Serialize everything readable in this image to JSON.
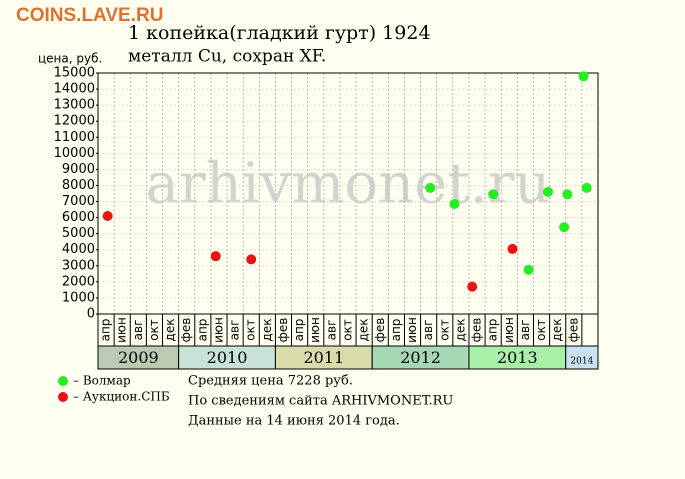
{
  "chart_data": {
    "type": "scatter",
    "watermark_top": "COINS.LAVE.RU",
    "title": "1 копейка(гладкий гурт) 1924",
    "subtitle": "металл Cu, сохран XF.",
    "ylabel": "цена, руб.",
    "watermark": "arhivmonet.ru",
    "xlim": [
      -0.5,
      30.5
    ],
    "ylim": [
      0,
      15000
    ],
    "yticks": [
      0,
      1000,
      2000,
      3000,
      4000,
      5000,
      6000,
      7000,
      8000,
      9000,
      10000,
      11000,
      12000,
      13000,
      14000,
      15000
    ],
    "grid": true,
    "x_groups": [
      {
        "label": "2009",
        "color": "#bccab4",
        "categories": [
          "апр",
          "июн",
          "авг",
          "окт",
          "дек"
        ]
      },
      {
        "label": "2010",
        "color": "#c8e2d8",
        "categories": [
          "фев",
          "апр",
          "июн",
          "авг",
          "окт",
          "дек"
        ]
      },
      {
        "label": "2011",
        "color": "#d8dcaa",
        "categories": [
          "фев",
          "апр",
          "июн",
          "авг",
          "окт",
          "дек"
        ]
      },
      {
        "label": "2012",
        "color": "#a6d8b6",
        "categories": [
          "фев",
          "апр",
          "июн",
          "авг",
          "окт",
          "дек"
        ]
      },
      {
        "label": "2013",
        "color": "#a8f0a8",
        "categories": [
          "фев",
          "апр",
          "июн",
          "авг",
          "окт",
          "дек"
        ]
      },
      {
        "label": "2014",
        "color": "#c8e2f0",
        "categories": [
          "фев"
        ]
      }
    ],
    "series": [
      {
        "name": "– Волмар",
        "color": "#22ee22",
        "x": [
          20.1,
          21.6,
          24.0,
          26.2,
          27.4,
          28.4,
          28.6,
          29.6,
          29.8
        ],
        "values": [
          7850,
          6850,
          7450,
          2750,
          7600,
          5400,
          7450,
          14800,
          7850
        ]
      },
      {
        "name": "– Аукцион.СПБ",
        "color": "#ee1111",
        "x": [
          0.1,
          6.8,
          9.0,
          22.7,
          25.2
        ],
        "values": [
          6100,
          3600,
          3400,
          1700,
          4050
        ]
      }
    ],
    "notes": [
      "Средняя цена 7228 руб.",
      "По  сведениям сайта ARHIVMONET.RU",
      "Данные на 14 июня 2014 года."
    ]
  }
}
